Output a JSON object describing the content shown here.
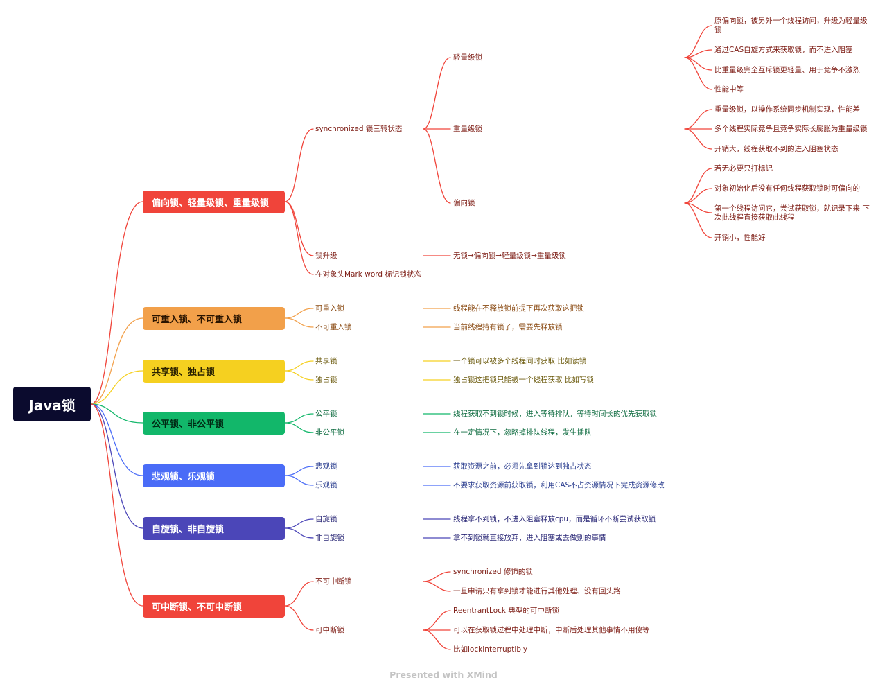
{
  "root": {
    "label": "Java锁",
    "color": "#0b0b2e"
  },
  "branches": [
    {
      "label": "偏向锁、轻量级锁、重量级锁",
      "color": "#f0443a",
      "children": [
        {
          "label": "synchronized 锁三转状态",
          "children": [
            {
              "label": "轻量级锁",
              "details": [
                "原偏向锁，被另外一个线程访问，升级为轻量级锁",
                "通过CAS自旋方式来获取锁，而不进入阻塞",
                "比重量级完全互斥锁更轻量、用于竞争不激烈",
                "性能中等"
              ]
            },
            {
              "label": "重量级锁",
              "details": [
                "重量级锁，以操作系统同步机制实现，性能差",
                "多个线程实际竞争且竞争实际长膨胀为重量级锁",
                "开销大，线程获取不到的进入阻塞状态"
              ]
            },
            {
              "label": "偏向锁",
              "details": [
                "若无必要只打标记",
                "对象初始化后没有任何线程获取锁时可偏向的",
                "第一个线程访问它，尝试获取锁，就记录下来 下次此线程直接获取此线程",
                "开销小，性能好"
              ]
            }
          ]
        },
        {
          "label": "锁升级",
          "detail": "无锁→偏向锁→轻量级锁→重量级锁"
        },
        {
          "label": "在对象头Mark word 标记锁状态"
        }
      ]
    },
    {
      "label": "可重入锁、不可重入锁",
      "color": "#f2a04a",
      "children": [
        {
          "label": "可重入锁",
          "detail": "线程能在不释放锁前提下再次获取这把锁"
        },
        {
          "label": "不可重入锁",
          "detail": "当前线程持有锁了，需要先释放锁"
        }
      ]
    },
    {
      "label": "共享锁、独占锁",
      "color": "#f5d020",
      "children": [
        {
          "label": "共享锁",
          "detail": "一个锁可以被多个线程同时获取 比如读锁"
        },
        {
          "label": "独占锁",
          "detail": "独占锁这把锁只能被一个线程获取 比如写锁"
        }
      ]
    },
    {
      "label": "公平锁、非公平锁",
      "color": "#12b76a",
      "children": [
        {
          "label": "公平锁",
          "detail": "线程获取不到锁时候，进入等待排队，等待时间长的优先获取锁"
        },
        {
          "label": "非公平锁",
          "detail": "在一定情况下，忽略掉排队线程，发生插队"
        }
      ]
    },
    {
      "label": "悲观锁、乐观锁",
      "color": "#4a6cf7",
      "children": [
        {
          "label": "悲观锁",
          "detail": "获取资源之前，必须先拿到锁达到独占状态"
        },
        {
          "label": "乐观锁",
          "detail": "不要求获取资源前获取锁，利用CAS不占资源情况下完成资源修改"
        }
      ]
    },
    {
      "label": "自旋锁、非自旋锁",
      "color": "#4b46b8",
      "children": [
        {
          "label": "自旋锁",
          "detail": "线程拿不到锁，不进入阻塞释放cpu，而是循环不断尝试获取锁"
        },
        {
          "label": "非自旋锁",
          "detail": "拿不到锁就直接放弃，进入阻塞或去做别的事情"
        }
      ]
    },
    {
      "label": "可中断锁、不可中断锁",
      "color": "#f0443a",
      "children": [
        {
          "label": "不可中断锁",
          "details": [
            "synchronized 修饰的锁",
            "一旦申请只有拿到锁才能进行其他处理、没有回头路"
          ]
        },
        {
          "label": "可中断锁",
          "details": [
            "ReentrantLock 典型的可中断锁",
            "可以在获取锁过程中处理中断，中断后处理其他事情不用傻等",
            "比如lockInterruptibly"
          ]
        }
      ]
    }
  ],
  "footer": "Presented with XMind"
}
